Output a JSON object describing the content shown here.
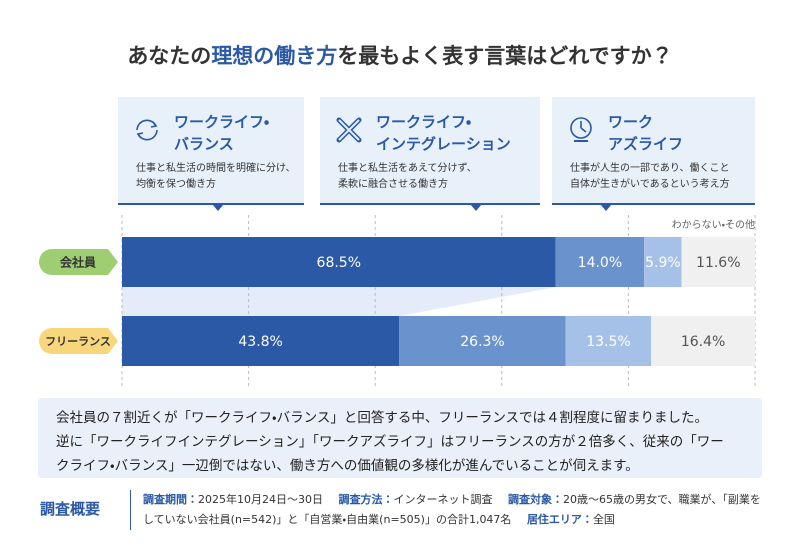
{
  "title_parts": [
    "あなたの",
    "理想の働き方",
    "を最もよく表す言葉はどれですか？"
  ],
  "cards": [
    {
      "description": "仕事と私生活の時間を明確に分け、\n均衡を保つ働き方"
    },
    {
      "description": "仕事と私生活をあえて分けず、\n柔軟に融合させる働き方"
    },
    {
      "description": "仕事が人生の一部であり、働くこと\n自体が生きがいであるという考え方"
    }
  ],
  "chart_data": {
    "type": "stacked-bar-horizontal",
    "categories": [
      "会社員",
      "フリーランス"
    ],
    "series": [
      {
        "name": "ワークライフ・\nバランス",
        "color": "#2b59a6",
        "values": [
          68.5,
          43.8
        ],
        "value_labels": [
          "68.5%",
          "43.8%"
        ]
      },
      {
        "name": "ワークライフ・\nインテグレーション",
        "color": "#6a92cd",
        "values": [
          14.0,
          26.3
        ],
        "value_labels": [
          "14.0%",
          "26.3%"
        ]
      },
      {
        "name": "ワーク\nアズライフ",
        "color": "#a6c1e7",
        "values": [
          5.9,
          13.5
        ],
        "value_labels": [
          "5.9%",
          "13.5%"
        ]
      },
      {
        "name": "わからない・その他",
        "color": "#f0f0f0",
        "values": [
          11.6,
          16.4
        ],
        "value_labels": [
          "11.6%",
          "16.4%"
        ]
      }
    ],
    "xlim": [
      0,
      100
    ],
    "xticks": [
      0,
      20,
      40,
      60,
      80,
      100
    ],
    "grid": true
  },
  "summary_lines": [
    "会社員の７割近くが「ワークライフ・バランス」と回答する中、フリーランスでは４割程度に留まりました。",
    "逆に「ワークライフインテグレーション」「ワークアズライフ」はフリーランスの方が２倍多く、従来の「ワー",
    "クライフ・バランス」一辺倒ではない、働き方への価値観の多様化が進んでいることが伺えます。"
  ],
  "survey": {
    "heading": "調査概要",
    "items": [
      {
        "label": "調査期間：",
        "text": "2025年10月24日～30日"
      },
      {
        "label": "調査方法：",
        "text": "インターネット調査"
      },
      {
        "label": "調査対象：",
        "text": "20歳～65歳の男女で、職業が、「副業をしていない会社員(n=542)」と「自営業・自由業(n=505)」の合計1,047名"
      },
      {
        "label": "居住エリア：",
        "text": "全国"
      }
    ]
  }
}
